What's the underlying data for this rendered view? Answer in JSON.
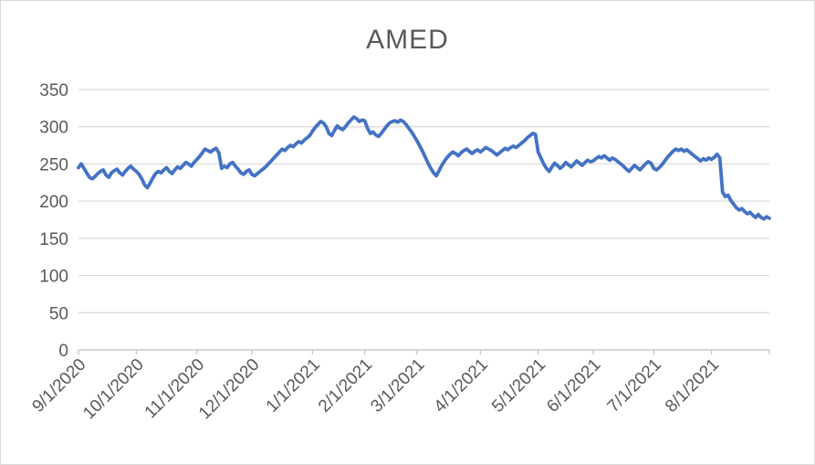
{
  "window": {
    "background": "#ffffff",
    "border_color": "#d9d9d9"
  },
  "chart_data": {
    "type": "line",
    "title": "AMED",
    "categories": [
      "9/1/2020",
      "10/1/2020",
      "11/1/2020",
      "12/1/2020",
      "1/1/2021",
      "2/1/2021",
      "3/1/2021",
      "4/1/2021",
      "5/1/2021",
      "6/1/2021",
      "7/1/2021",
      "8/1/2021"
    ],
    "tick_day_offsets": [
      0,
      21,
      43,
      63,
      85,
      104,
      123,
      146,
      167,
      187,
      209,
      230
    ],
    "series": [
      {
        "name": "AMED",
        "color": "#4472C4",
        "values": [
          245,
          250,
          244,
          238,
          232,
          230,
          233,
          237,
          240,
          242,
          235,
          232,
          238,
          241,
          243,
          238,
          235,
          240,
          244,
          247,
          243,
          240,
          236,
          230,
          222,
          218,
          224,
          231,
          237,
          240,
          238,
          242,
          245,
          240,
          237,
          242,
          246,
          244,
          248,
          252,
          250,
          247,
          252,
          256,
          260,
          265,
          270,
          268,
          266,
          269,
          271,
          265,
          244,
          247,
          245,
          250,
          252,
          247,
          243,
          238,
          236,
          240,
          242,
          236,
          234,
          237,
          240,
          243,
          246,
          250,
          254,
          258,
          262,
          266,
          270,
          268,
          272,
          275,
          273,
          277,
          280,
          278,
          282,
          285,
          288,
          294,
          299,
          303,
          307,
          305,
          300,
          291,
          288,
          295,
          301,
          298,
          296,
          300,
          305,
          309,
          313,
          311,
          307,
          309,
          308,
          298,
          291,
          293,
          289,
          287,
          291,
          296,
          301,
          305,
          307,
          308,
          306,
          309,
          307,
          303,
          298,
          293,
          287,
          281,
          274,
          267,
          259,
          251,
          244,
          238,
          234,
          241,
          248,
          254,
          259,
          263,
          266,
          264,
          261,
          265,
          268,
          270,
          267,
          264,
          267,
          269,
          266,
          269,
          272,
          270,
          268,
          265,
          262,
          265,
          268,
          271,
          269,
          272,
          274,
          272,
          275,
          278,
          281,
          285,
          288,
          291,
          290,
          266,
          258,
          250,
          244,
          240,
          246,
          251,
          248,
          244,
          247,
          252,
          249,
          246,
          250,
          254,
          251,
          248,
          252,
          255,
          253,
          254,
          257,
          260,
          258,
          261,
          258,
          255,
          258,
          256,
          253,
          250,
          247,
          243,
          240,
          244,
          248,
          245,
          242,
          246,
          250,
          253,
          251,
          244,
          242,
          245,
          249,
          254,
          259,
          263,
          267,
          270,
          268,
          270,
          267,
          269,
          266,
          263,
          260,
          257,
          254,
          257,
          255,
          258,
          256,
          259,
          263,
          258,
          212,
          206,
          208,
          201,
          196,
          191,
          188,
          190,
          186,
          183,
          185,
          181,
          178,
          182,
          178,
          176,
          179,
          177
        ]
      }
    ],
    "ylim": [
      0,
      350
    ],
    "y_tick_step": 50,
    "grid": true,
    "legend": "none",
    "x_label_rotation_deg": -45,
    "colors": {
      "line": "#4472C4",
      "gridline": "#d9d9d9",
      "axis_line": "#bfbfbf",
      "label_text": "#595959",
      "title_text": "#595959"
    }
  }
}
